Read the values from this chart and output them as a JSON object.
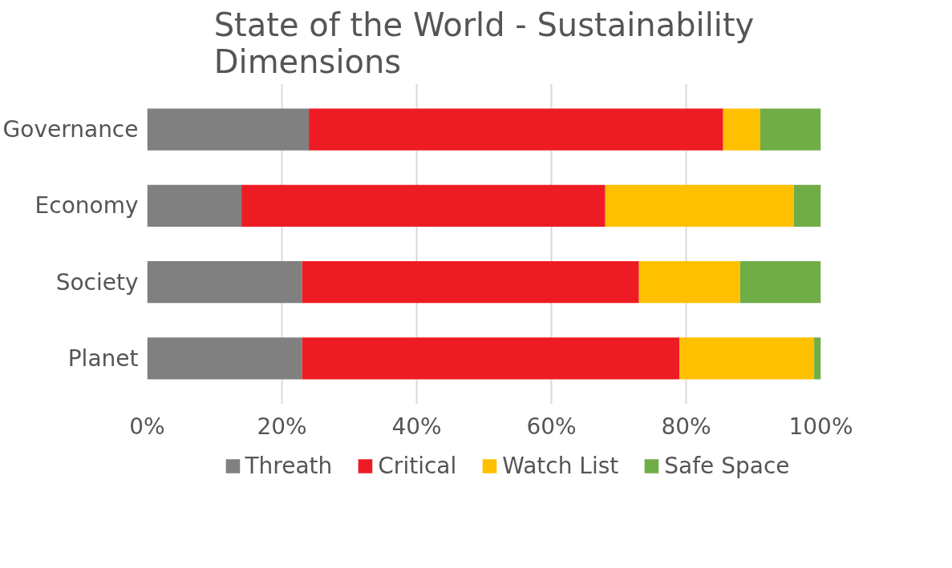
{
  "chart_data": {
    "type": "bar",
    "title": "State of the World - Sustainability Dimensions",
    "orientation": "horizontal",
    "stacked": true,
    "categories": [
      "Governance",
      "Economy",
      "Society",
      "Planet"
    ],
    "series": [
      {
        "name": "Threath",
        "color": "#808080",
        "values": [
          24,
          14,
          23,
          23
        ]
      },
      {
        "name": "Critical",
        "color": "#ed1c24",
        "values": [
          61.5,
          54,
          50,
          56
        ]
      },
      {
        "name": "Watch List",
        "color": "#ffc000",
        "values": [
          5.5,
          28,
          15,
          20
        ]
      },
      {
        "name": "Safe Space",
        "color": "#70ad47",
        "values": [
          9,
          4,
          12,
          1
        ]
      }
    ],
    "xlim": [
      0,
      100
    ],
    "xticks": [
      {
        "value": 0,
        "label": "0%"
      },
      {
        "value": 20,
        "label": "20%"
      },
      {
        "value": 40,
        "label": "40%"
      },
      {
        "value": 60,
        "label": "60%"
      },
      {
        "value": 80,
        "label": "80%"
      },
      {
        "value": 100,
        "label": "100%"
      }
    ],
    "grid": "x",
    "legend": "bottom"
  }
}
